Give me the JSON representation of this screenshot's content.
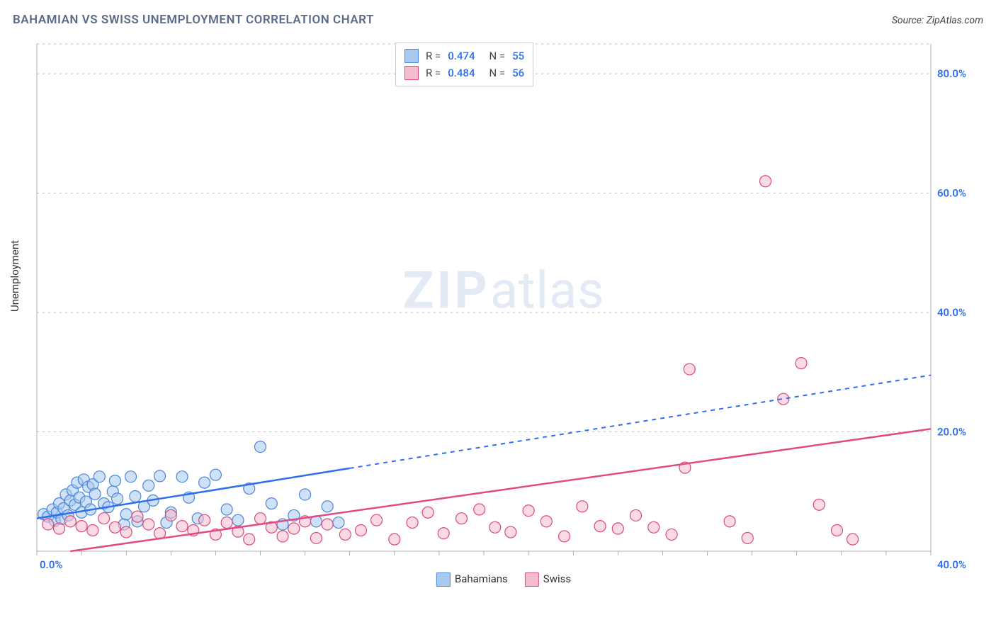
{
  "title": "BAHAMIAN VS SWISS UNEMPLOYMENT CORRELATION CHART",
  "source_label": "Source: ZipAtlas.com",
  "y_axis_label": "Unemployment",
  "watermark": {
    "bold": "ZIP",
    "rest": "atlas"
  },
  "chart": {
    "type": "scatter",
    "xlim": [
      0,
      40
    ],
    "ylim": [
      0,
      85
    ],
    "x_ticks": [
      0,
      40
    ],
    "x_tick_labels": [
      "0.0%",
      "40.0%"
    ],
    "x_minor_step": 2,
    "y_ticks": [
      20,
      40,
      60,
      80
    ],
    "y_tick_labels": [
      "20.0%",
      "40.0%",
      "60.0%",
      "80.0%"
    ],
    "background_color": "#ffffff",
    "grid_color": "#bbbbbb",
    "axis_color": "#666666",
    "label_color": "#2f6fed",
    "marker_radius": 8,
    "marker_opacity": 0.55,
    "series": [
      {
        "name": "Bahamians",
        "color_fill": "#a8c9f0",
        "color_stroke": "#4a86d8",
        "line_color": "#2f6fed",
        "R": "0.474",
        "N": "55",
        "trend": {
          "x0": 0,
          "y0": 5.5,
          "x1": 40,
          "y1": 29.5,
          "solid_until_x": 14
        },
        "points": [
          [
            0.3,
            6.2
          ],
          [
            0.5,
            5.8
          ],
          [
            0.7,
            7.0
          ],
          [
            0.8,
            5.1
          ],
          [
            0.9,
            6.5
          ],
          [
            1.0,
            8.0
          ],
          [
            1.1,
            5.4
          ],
          [
            1.2,
            7.2
          ],
          [
            1.3,
            9.5
          ],
          [
            1.4,
            6.0
          ],
          [
            1.5,
            8.5
          ],
          [
            1.6,
            10.2
          ],
          [
            1.7,
            7.8
          ],
          [
            1.8,
            11.5
          ],
          [
            1.9,
            9.0
          ],
          [
            2.0,
            6.5
          ],
          [
            2.1,
            12.0
          ],
          [
            2.2,
            8.3
          ],
          [
            2.3,
            10.8
          ],
          [
            2.4,
            7.0
          ],
          [
            2.5,
            11.2
          ],
          [
            2.6,
            9.6
          ],
          [
            2.8,
            12.5
          ],
          [
            3.0,
            8.0
          ],
          [
            3.2,
            7.4
          ],
          [
            3.4,
            10.0
          ],
          [
            3.5,
            11.8
          ],
          [
            3.6,
            8.8
          ],
          [
            3.9,
            4.5
          ],
          [
            4.0,
            6.2
          ],
          [
            4.2,
            12.5
          ],
          [
            4.4,
            9.2
          ],
          [
            4.5,
            5.0
          ],
          [
            4.8,
            7.5
          ],
          [
            5.0,
            11.0
          ],
          [
            5.2,
            8.5
          ],
          [
            5.5,
            12.6
          ],
          [
            5.8,
            4.8
          ],
          [
            6.0,
            6.5
          ],
          [
            6.5,
            12.5
          ],
          [
            6.8,
            9.0
          ],
          [
            7.2,
            5.5
          ],
          [
            7.5,
            11.5
          ],
          [
            8.0,
            12.8
          ],
          [
            8.5,
            7.0
          ],
          [
            9.0,
            5.2
          ],
          [
            9.5,
            10.5
          ],
          [
            10.0,
            17.5
          ],
          [
            10.5,
            8.0
          ],
          [
            11.0,
            4.5
          ],
          [
            11.5,
            6.0
          ],
          [
            12.0,
            9.5
          ],
          [
            12.5,
            5.0
          ],
          [
            13.0,
            7.5
          ],
          [
            13.5,
            4.8
          ]
        ]
      },
      {
        "name": "Swiss",
        "color_fill": "#f4bcd0",
        "color_stroke": "#d94a7a",
        "line_color": "#e14a88",
        "R": "0.484",
        "N": "56",
        "trend": {
          "x0": 1.5,
          "y0": 0,
          "x1": 40,
          "y1": 20.5,
          "solid_until_x": 40
        },
        "points": [
          [
            0.5,
            4.5
          ],
          [
            1.0,
            3.8
          ],
          [
            1.5,
            5.0
          ],
          [
            2.0,
            4.2
          ],
          [
            2.5,
            3.5
          ],
          [
            3.0,
            5.5
          ],
          [
            3.5,
            4.0
          ],
          [
            4.0,
            3.2
          ],
          [
            4.5,
            5.8
          ],
          [
            5.0,
            4.5
          ],
          [
            5.5,
            3.0
          ],
          [
            6.0,
            6.0
          ],
          [
            6.5,
            4.2
          ],
          [
            7.0,
            3.5
          ],
          [
            7.5,
            5.2
          ],
          [
            8.0,
            2.8
          ],
          [
            8.5,
            4.8
          ],
          [
            9.0,
            3.3
          ],
          [
            9.5,
            2.0
          ],
          [
            10.0,
            5.5
          ],
          [
            10.5,
            4.0
          ],
          [
            11.0,
            2.5
          ],
          [
            11.5,
            3.8
          ],
          [
            12.0,
            5.0
          ],
          [
            12.5,
            2.2
          ],
          [
            13.0,
            4.5
          ],
          [
            13.8,
            2.8
          ],
          [
            14.5,
            3.5
          ],
          [
            15.2,
            5.2
          ],
          [
            16.0,
            2.0
          ],
          [
            16.8,
            4.8
          ],
          [
            17.5,
            6.5
          ],
          [
            18.2,
            3.0
          ],
          [
            19.0,
            5.5
          ],
          [
            19.8,
            7.0
          ],
          [
            20.5,
            4.0
          ],
          [
            21.2,
            3.2
          ],
          [
            22.0,
            6.8
          ],
          [
            22.8,
            5.0
          ],
          [
            23.6,
            2.5
          ],
          [
            24.4,
            7.5
          ],
          [
            25.2,
            4.2
          ],
          [
            26.0,
            3.8
          ],
          [
            26.8,
            6.0
          ],
          [
            27.6,
            4.0
          ],
          [
            28.4,
            2.8
          ],
          [
            29.0,
            14.0
          ],
          [
            29.2,
            30.5
          ],
          [
            31.0,
            5.0
          ],
          [
            31.8,
            2.2
          ],
          [
            32.6,
            62.0
          ],
          [
            33.4,
            25.5
          ],
          [
            34.2,
            31.5
          ],
          [
            35.0,
            7.8
          ],
          [
            35.8,
            3.5
          ],
          [
            36.5,
            2.0
          ]
        ]
      }
    ]
  },
  "legend_labels": {
    "R": "R =",
    "N": "N ="
  },
  "bottom_legend": [
    "Bahamians",
    "Swiss"
  ]
}
